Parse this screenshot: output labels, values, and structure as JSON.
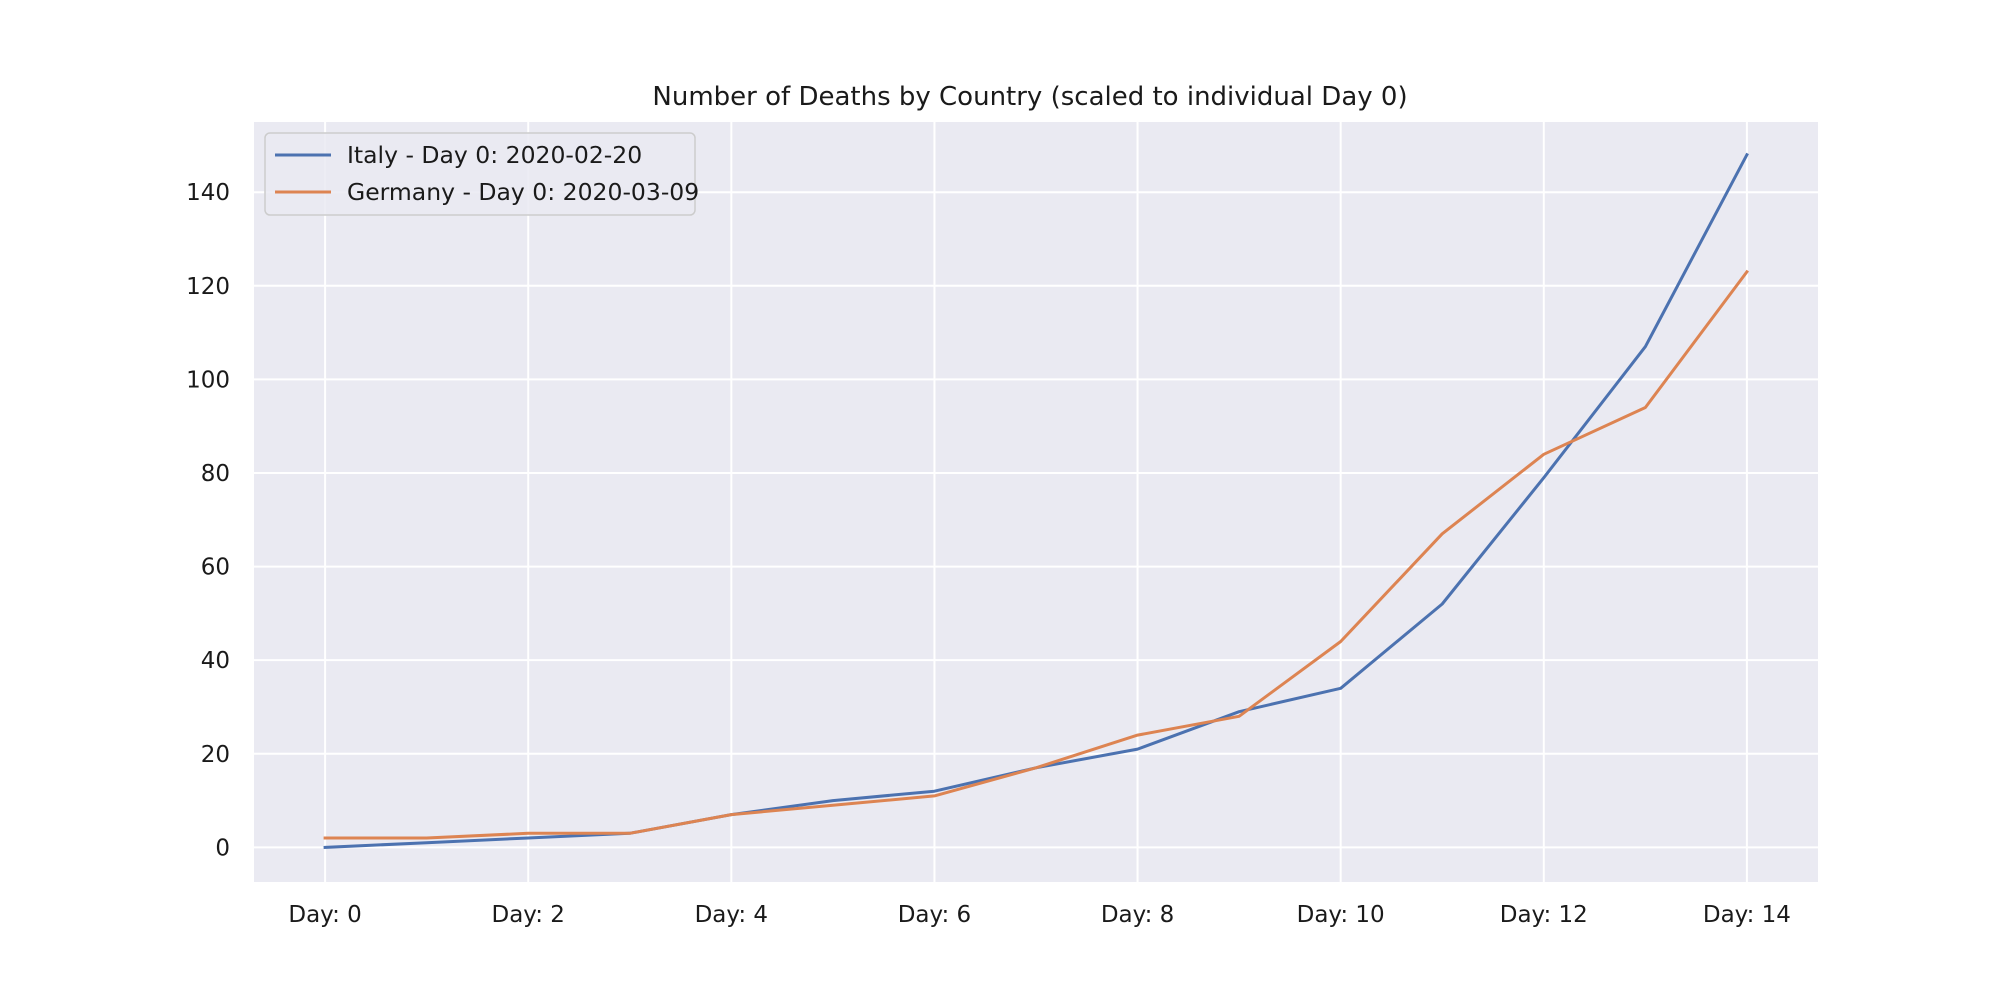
{
  "chart_data": {
    "type": "line",
    "title": "Number of Deaths by Country (scaled to individual Day 0)",
    "xlabel": "",
    "ylabel": "",
    "x": [
      0,
      1,
      2,
      3,
      4,
      5,
      6,
      7,
      8,
      9,
      10,
      11,
      12,
      13,
      14
    ],
    "xticks": [
      {
        "value": 0,
        "label": "Day: 0"
      },
      {
        "value": 2,
        "label": "Day: 2"
      },
      {
        "value": 4,
        "label": "Day: 4"
      },
      {
        "value": 6,
        "label": "Day: 6"
      },
      {
        "value": 8,
        "label": "Day: 8"
      },
      {
        "value": 10,
        "label": "Day: 10"
      },
      {
        "value": 12,
        "label": "Day: 12"
      },
      {
        "value": 14,
        "label": "Day: 14"
      }
    ],
    "yticks": [
      0,
      20,
      40,
      60,
      80,
      100,
      120,
      140
    ],
    "xlim": [
      -0.7,
      14.7
    ],
    "ylim": [
      -7.4,
      155
    ],
    "grid": true,
    "background": "#eaeaf2",
    "legend_position": "top-left",
    "series": [
      {
        "name": "Italy - Day 0: 2020-02-20",
        "color": "#4c72b0",
        "values": [
          0,
          1,
          2,
          3,
          7,
          10,
          12,
          17,
          21,
          29,
          34,
          52,
          79,
          107,
          148
        ]
      },
      {
        "name": "Germany - Day 0: 2020-03-09",
        "color": "#dd8452",
        "values": [
          2,
          2,
          3,
          3,
          7,
          9,
          11,
          17,
          24,
          28,
          44,
          67,
          84,
          94,
          123
        ]
      }
    ]
  }
}
